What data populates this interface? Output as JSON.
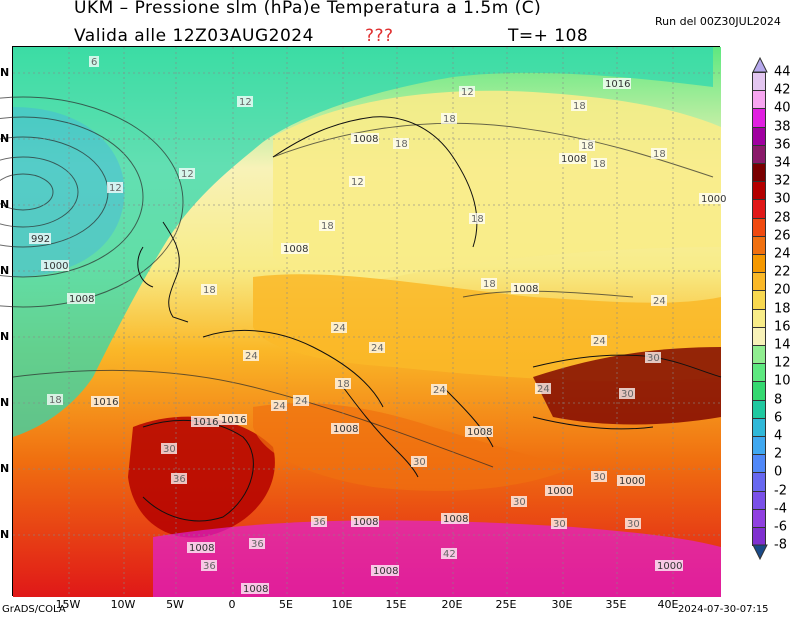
{
  "header": {
    "title_line1": "UKM – Pressione slm (hPa)e Temperatura a 1.5m (C)",
    "run_info": "Run del 00Z30JUL2024",
    "valid_label": "Valida alle 12Z03AUG2024",
    "question_marks": "???",
    "lead_time": "T=+ 108"
  },
  "footer": {
    "left": "GrADS/COLA",
    "right": "2024-07-30-07:15"
  },
  "axes": {
    "lat_labels": [
      "N",
      "N",
      "N",
      "N",
      "N",
      "N",
      "N",
      "N"
    ],
    "lon_labels": [
      "15W",
      "10W",
      "5W",
      "0",
      "5E",
      "10E",
      "15E",
      "20E",
      "25E",
      "30E",
      "35E",
      "40E"
    ]
  },
  "colorbar": {
    "levels": [
      "44",
      "42",
      "40",
      "38",
      "36",
      "34",
      "32",
      "30",
      "28",
      "26",
      "24",
      "22",
      "20",
      "18",
      "16",
      "14",
      "12",
      "10",
      "8",
      "6",
      "4",
      "2",
      "0",
      "-2",
      "-4",
      "-6",
      "-8"
    ],
    "colors": [
      "#e3c6f0",
      "#f7a6f0",
      "#e020e0",
      "#a000a0",
      "#8a1a6a",
      "#7a0000",
      "#b40000",
      "#e01818",
      "#f04a10",
      "#f07010",
      "#f59800",
      "#fab828",
      "#f8d850",
      "#f8ec88",
      "#f8f2b8",
      "#90ee90",
      "#5ee880",
      "#34d870",
      "#20c8a0",
      "#30b8d8",
      "#40a8f0",
      "#5088f8",
      "#6868f0",
      "#7a50e8",
      "#9040e0",
      "#8030d0"
    ],
    "top_triangle_color": "#b6a8ec",
    "bottom_triangle_color": "#1a4a88"
  },
  "isobar_labels": [
    "992",
    "1000",
    "1008",
    "1016",
    "1008",
    "1008",
    "1008",
    "1008",
    "1016",
    "1008",
    "1016",
    "1008",
    "1008",
    "1000",
    "1008",
    "1008",
    "1016",
    "1000",
    "1008",
    "1008",
    "1000",
    "1000"
  ],
  "temp_labels": [
    "6",
    "12",
    "12",
    "12",
    "12",
    "18",
    "18",
    "18",
    "18",
    "18",
    "18",
    "18",
    "18",
    "18",
    "24",
    "24",
    "24",
    "24",
    "24",
    "24",
    "24",
    "24",
    "30",
    "30",
    "30",
    "30",
    "30",
    "30",
    "30",
    "36",
    "36",
    "36",
    "36",
    "42",
    "18",
    "12",
    "18",
    "18",
    "24",
    "30"
  ]
}
